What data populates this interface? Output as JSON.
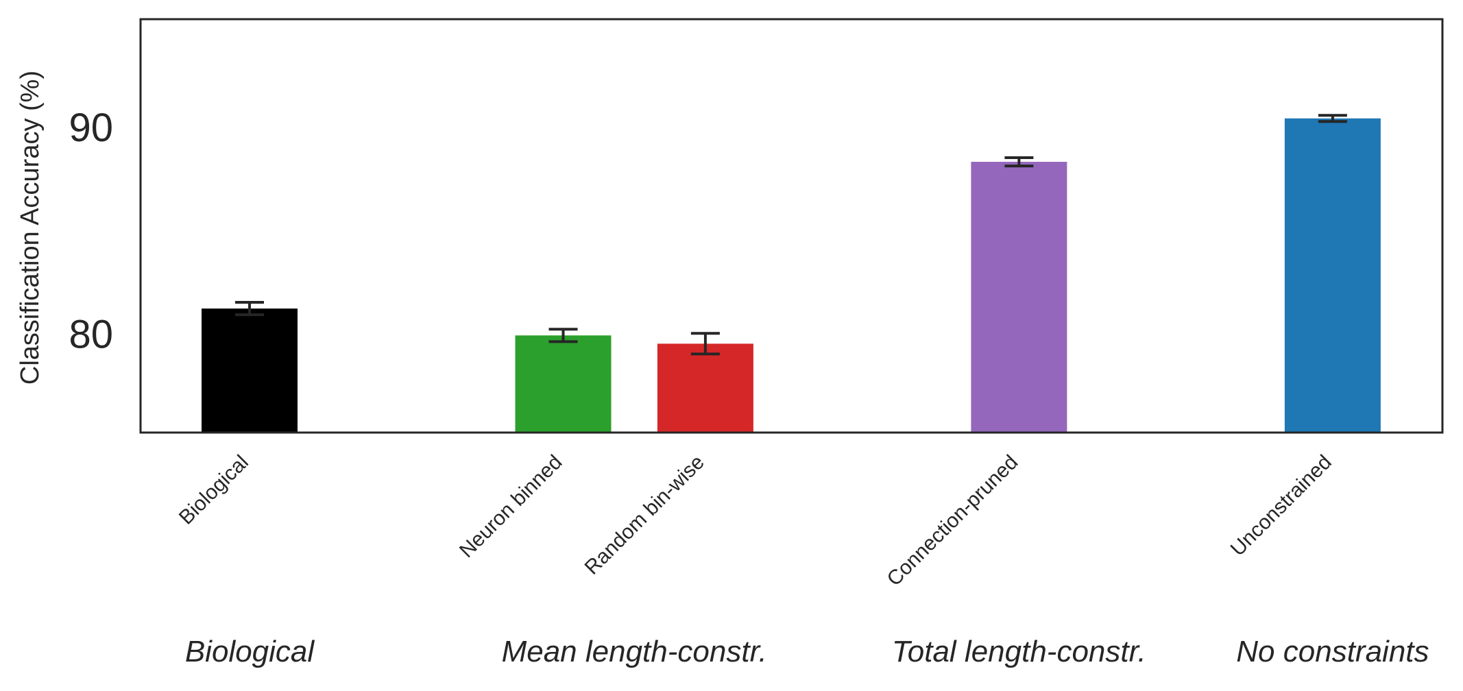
{
  "chart_data": {
    "type": "bar",
    "ylabel": "Classification Accuracy (%)",
    "ylim": [
      75.3,
      95.3
    ],
    "yticks": [
      80,
      90
    ],
    "grid": false,
    "categories": [
      "Biological",
      "Neuron binned",
      "Random bin-wise",
      "Connection-pruned",
      "Unconstrained"
    ],
    "values": [
      81.3,
      80.0,
      79.6,
      88.4,
      90.5
    ],
    "errors": [
      0.3,
      0.3,
      0.5,
      0.2,
      0.15
    ],
    "colors": [
      "#000000",
      "#2ca02c",
      "#d62728",
      "#9467bd",
      "#1f77b4"
    ],
    "x_positions": [
      0,
      1.5,
      2.18,
      3.68,
      5.18
    ],
    "groups": [
      {
        "label": "Biological",
        "x": 0
      },
      {
        "label": "Mean length-constr.",
        "x": 1.84
      },
      {
        "label": "Total length-constr.",
        "x": 3.68
      },
      {
        "label": "No constraints",
        "x": 5.18
      }
    ]
  }
}
